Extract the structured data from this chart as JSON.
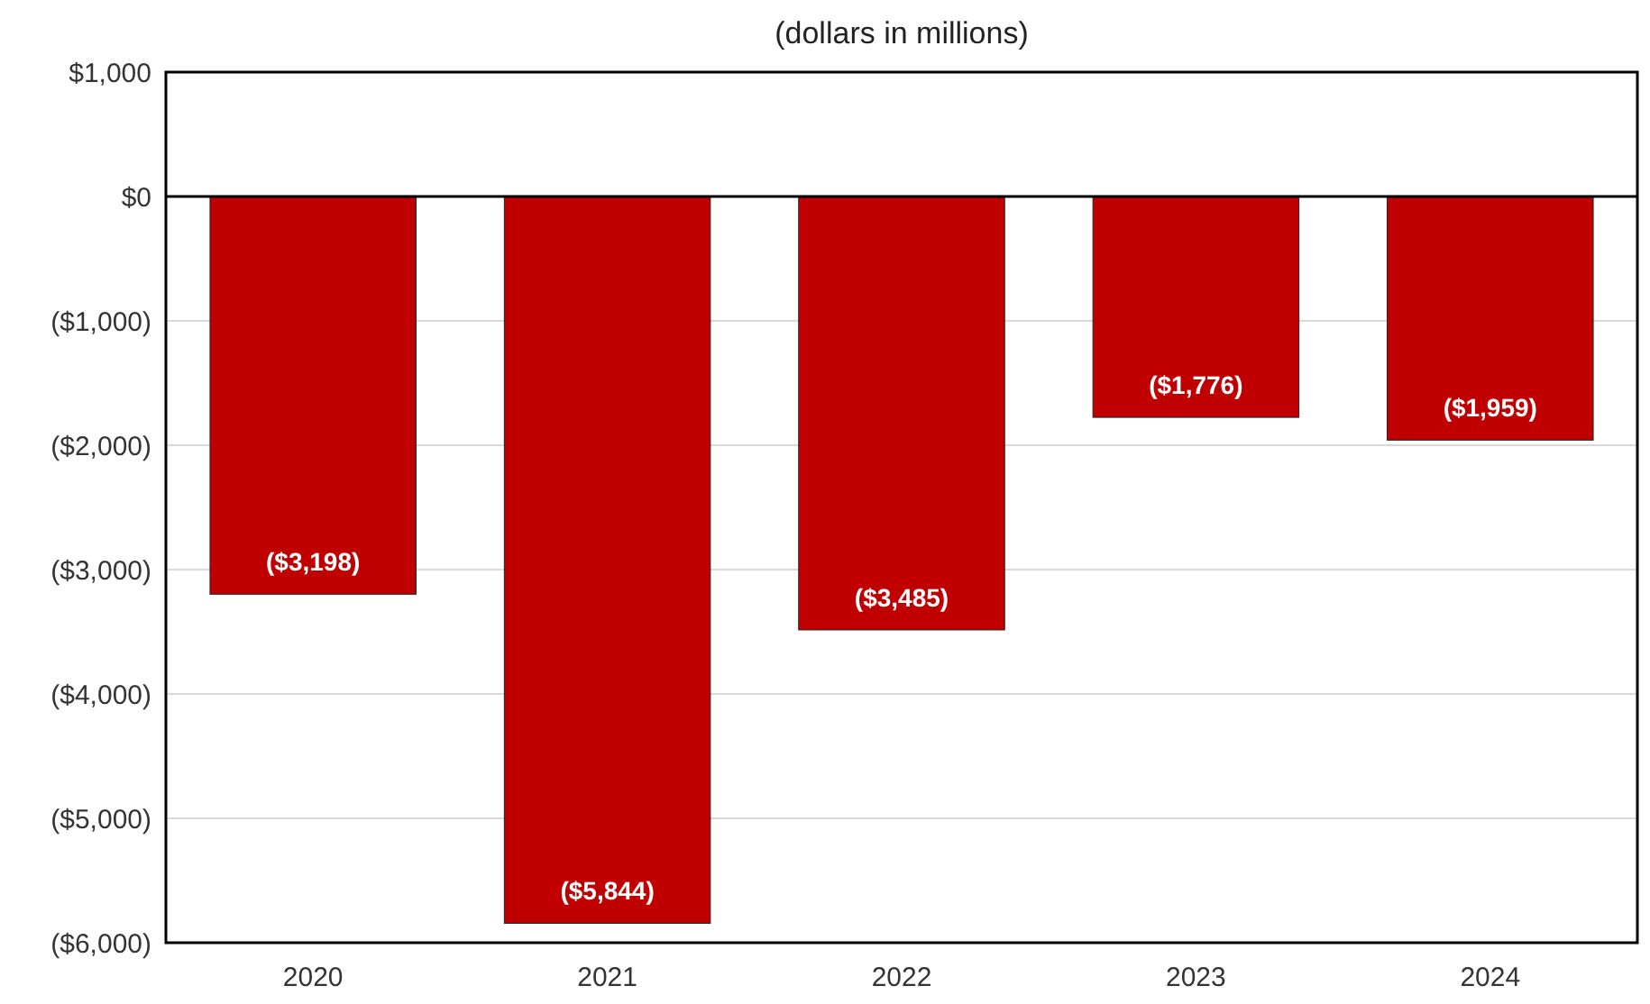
{
  "chart_data": {
    "type": "bar",
    "title": "(dollars in millions)",
    "categories": [
      "2020",
      "2021",
      "2022",
      "2023",
      "2024"
    ],
    "values": [
      -3198,
      -5844,
      -3485,
      -1776,
      -1959
    ],
    "color": "#c00000",
    "value_labels": [
      "($3,198)",
      "($5,844)",
      "($3,485)",
      "($1,776)",
      "($1,959)"
    ],
    "ylim": [
      -6000,
      1000
    ],
    "yticks": [
      {
        "value": 1000,
        "label": "$1,000"
      },
      {
        "value": 0,
        "label": "$0"
      },
      {
        "value": -1000,
        "label": "($1,000)"
      },
      {
        "value": -2000,
        "label": "($2,000)"
      },
      {
        "value": -3000,
        "label": "($3,000)"
      },
      {
        "value": -4000,
        "label": "($4,000)"
      },
      {
        "value": -5000,
        "label": "($5,000)"
      },
      {
        "value": -6000,
        "label": "($6,000)"
      }
    ],
    "grid": "y"
  }
}
